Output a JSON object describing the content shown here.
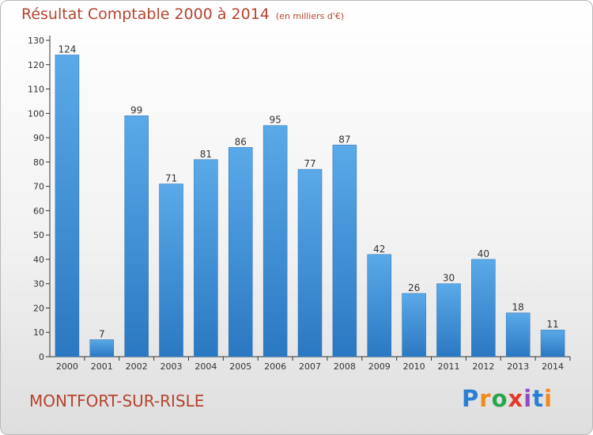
{
  "chart_data": {
    "type": "bar",
    "title": "Résultat Comptable 2000 à 2014",
    "subtitle": "(en milliers d'€)",
    "categories": [
      "2000",
      "2001",
      "2002",
      "2003",
      "2004",
      "2005",
      "2006",
      "2007",
      "2008",
      "2009",
      "2010",
      "2011",
      "2012",
      "2013",
      "2014"
    ],
    "values": [
      124,
      7,
      99,
      71,
      81,
      86,
      95,
      77,
      87,
      42,
      26,
      30,
      40,
      18,
      11
    ],
    "ylim": [
      0,
      130
    ],
    "yticks": [
      0,
      10,
      20,
      30,
      40,
      50,
      60,
      70,
      80,
      90,
      100,
      110,
      120,
      130
    ],
    "grid": false,
    "data_labels": true,
    "bar_color": "#3d8fd6"
  },
  "footer": {
    "location": "MONTFORT-SUR-RISLE",
    "logo": "Proxiti"
  },
  "colors": {
    "title": "#b5432f",
    "axis": "#333333",
    "bar_light": "#5aa9e8",
    "bar_dark": "#2b78c2"
  }
}
